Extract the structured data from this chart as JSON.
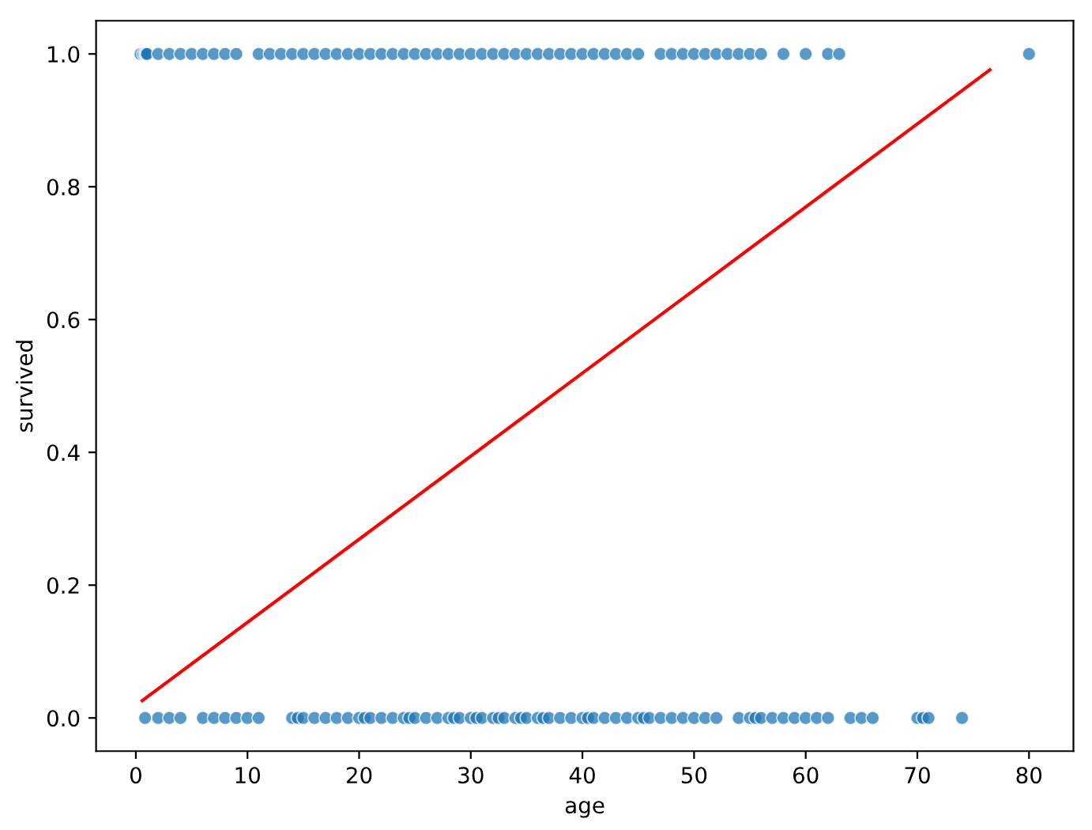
{
  "chart_data": {
    "type": "scatter",
    "xlabel": "age",
    "ylabel": "survived",
    "xlim": [
      -3.56,
      83.98
    ],
    "xticks": [
      0,
      10,
      20,
      30,
      40,
      50,
      60,
      70,
      80
    ],
    "ylim": [
      -0.05,
      1.05
    ],
    "yticks": [
      {
        "value": 0,
        "label": "0.0"
      },
      {
        "value": 0.2,
        "label": "0.2"
      },
      {
        "value": 0.4,
        "label": "0.4"
      },
      {
        "value": 0.6,
        "label": "0.6"
      },
      {
        "value": 0.8,
        "label": "0.8"
      },
      {
        "value": 1,
        "label": "1.0"
      }
    ],
    "grid": false,
    "series": [
      {
        "marker": "circle",
        "color": "#1f77b4",
        "x": [
          0.42,
          0.67,
          0.83,
          0.92,
          1,
          2,
          3,
          4,
          5,
          6,
          7,
          8,
          9,
          11,
          12,
          13,
          14,
          15,
          16,
          17,
          18,
          19,
          20,
          21,
          22,
          23,
          24,
          25,
          26,
          27,
          28,
          29,
          30,
          31,
          32,
          33,
          34,
          35,
          36,
          37,
          38,
          39,
          40,
          41,
          42,
          43,
          44,
          45,
          47,
          48,
          49,
          50,
          51,
          52,
          53,
          54,
          55,
          56,
          58,
          60,
          62,
          63,
          80
        ],
        "values": [
          1,
          1,
          1,
          1,
          1,
          1,
          1,
          1,
          1,
          1,
          1,
          1,
          1,
          1,
          1,
          1,
          1,
          1,
          1,
          1,
          1,
          1,
          1,
          1,
          1,
          1,
          1,
          1,
          1,
          1,
          1,
          1,
          1,
          1,
          1,
          1,
          1,
          1,
          1,
          1,
          1,
          1,
          1,
          1,
          1,
          1,
          1,
          1,
          1,
          1,
          1,
          1,
          1,
          1,
          1,
          1,
          1,
          1,
          1,
          1,
          1,
          1,
          1
        ]
      },
      {
        "marker": "circle",
        "color": "#1f77b4",
        "x": [
          0.83,
          2,
          3,
          4,
          6,
          7,
          8,
          9,
          10,
          11,
          14,
          14.5,
          15,
          16,
          17,
          18,
          19,
          20,
          20.5,
          21,
          22,
          23,
          24,
          24.5,
          25,
          26,
          27,
          28,
          28.5,
          29,
          30,
          30.5,
          31,
          32,
          32.5,
          33,
          34,
          34.5,
          35,
          36,
          36.5,
          37,
          38,
          39,
          40,
          40.5,
          41,
          42,
          43,
          44,
          45,
          45.5,
          46,
          47,
          48,
          49,
          50,
          51,
          52,
          54,
          55,
          55.5,
          56,
          57,
          58,
          59,
          60,
          61,
          62,
          64,
          65,
          66,
          70,
          70.5,
          71,
          74
        ],
        "values": [
          0,
          0,
          0,
          0,
          0,
          0,
          0,
          0,
          0,
          0,
          0,
          0,
          0,
          0,
          0,
          0,
          0,
          0,
          0,
          0,
          0,
          0,
          0,
          0,
          0,
          0,
          0,
          0,
          0,
          0,
          0,
          0,
          0,
          0,
          0,
          0,
          0,
          0,
          0,
          0,
          0,
          0,
          0,
          0,
          0,
          0,
          0,
          0,
          0,
          0,
          0,
          0,
          0,
          0,
          0,
          0,
          0,
          0,
          0,
          0,
          0,
          0,
          0,
          0,
          0,
          0,
          0,
          0,
          0,
          0,
          0,
          0,
          0,
          0,
          0,
          0
        ]
      },
      {
        "type": "line",
        "color": "#ff0000",
        "x": [
          0.57,
          76.5
        ],
        "values": [
          0.026,
          0.976
        ]
      }
    ]
  }
}
